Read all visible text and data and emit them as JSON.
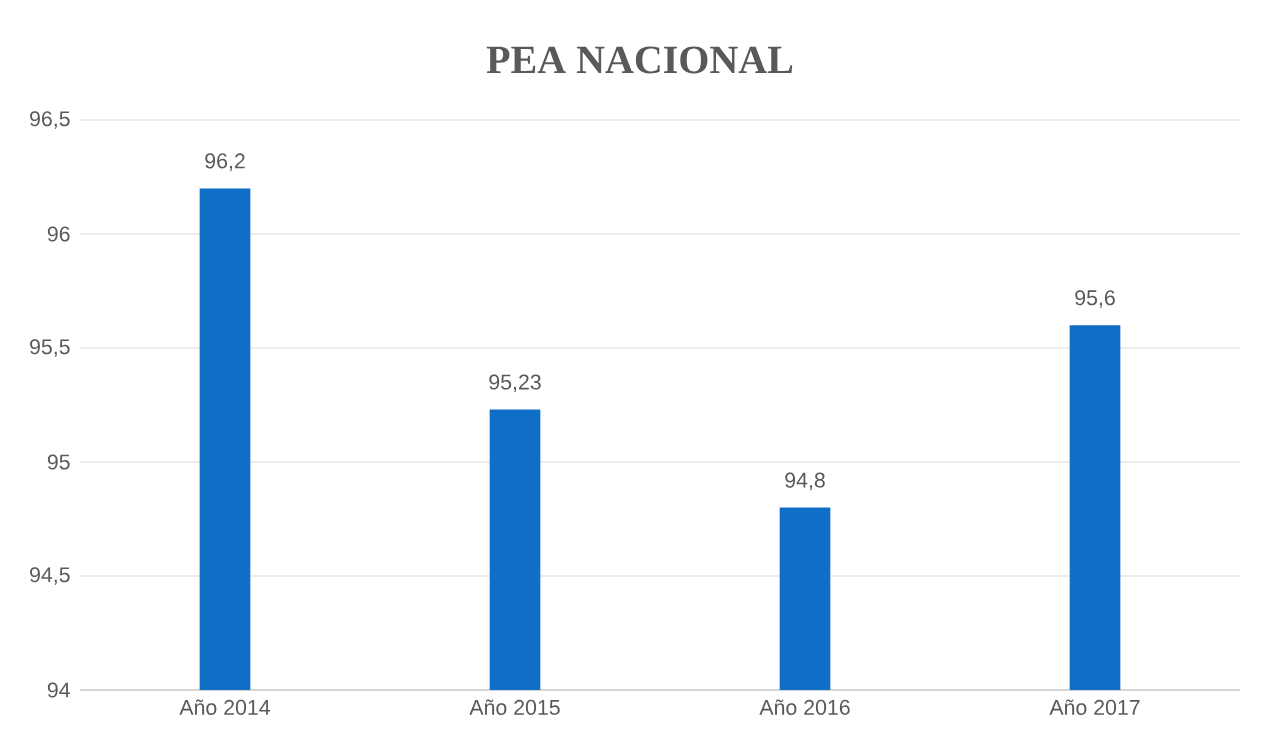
{
  "chart_data": {
    "type": "bar",
    "title": "PEA NACIONAL",
    "categories": [
      "Año 2014",
      "Año 2015",
      "Año 2016",
      "Año 2017"
    ],
    "values": [
      96.2,
      95.23,
      94.8,
      95.6
    ],
    "value_labels": [
      "96,2",
      "95,23",
      "94,8",
      "95,6"
    ],
    "color": "#0f6fc6",
    "ylim": [
      94,
      96.5
    ],
    "yticks": [
      {
        "value": 94,
        "label": "94"
      },
      {
        "value": 94.5,
        "label": "94,5"
      },
      {
        "value": 95,
        "label": "95"
      },
      {
        "value": 95.5,
        "label": "95,5"
      },
      {
        "value": 96,
        "label": "96"
      },
      {
        "value": 96.5,
        "label": "96,5"
      }
    ],
    "grid": "y"
  }
}
